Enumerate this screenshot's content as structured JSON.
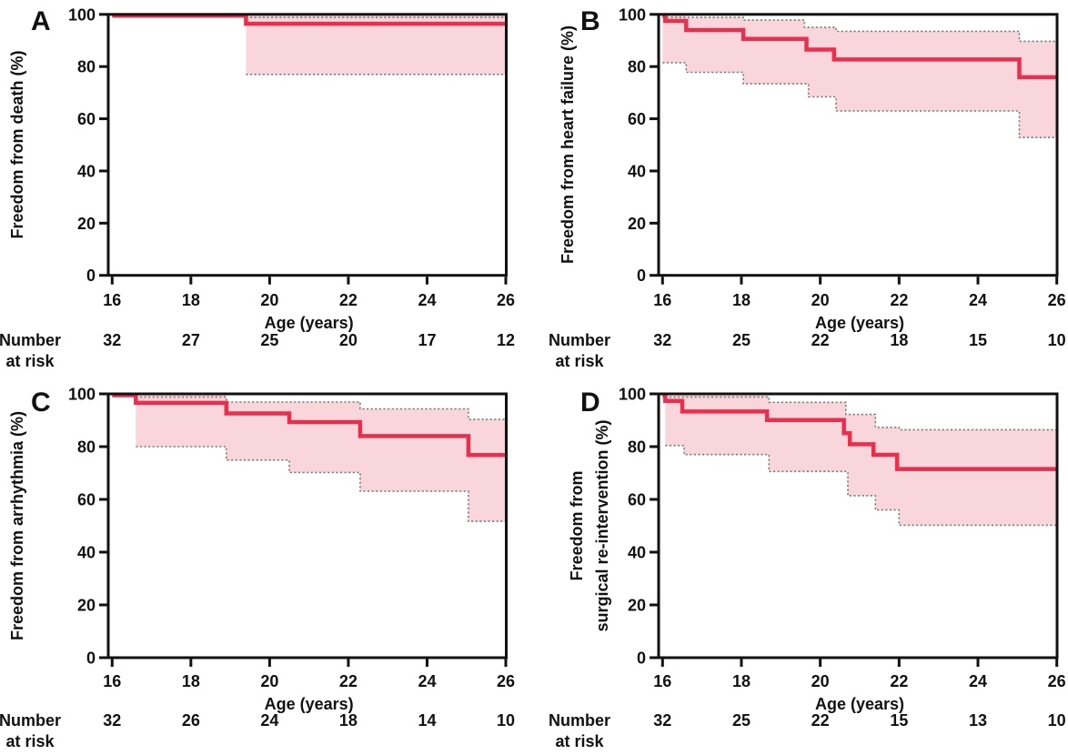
{
  "figure": {
    "xlabel": "Age (years)",
    "risk_label": [
      "Number",
      "at risk"
    ],
    "colors": {
      "curve": "#e8304e",
      "band": "#f9d6db",
      "ci_line": "#7d7d7d",
      "axis": "#111111"
    },
    "chart_data": [
      {
        "type": "km_step",
        "panel": "A",
        "ylabel": [
          "Freedom from death (%)"
        ],
        "xlabel": "Age (years)",
        "xlim": [
          16,
          26
        ],
        "ylim": [
          0,
          100
        ],
        "x_ticks": [
          16,
          18,
          20,
          22,
          24,
          26
        ],
        "y_ticks": [
          0,
          20,
          40,
          60,
          80,
          100
        ],
        "curve_steps": [
          [
            16,
            100
          ],
          [
            19.4,
            96.4
          ]
        ],
        "ci_upper_steps": [
          [
            19.4,
            100
          ]
        ],
        "ci_lower_steps": [
          [
            19.4,
            77
          ]
        ],
        "number_at_risk": [
          32,
          27,
          25,
          20,
          17,
          12
        ]
      },
      {
        "type": "km_step",
        "panel": "B",
        "ylabel": [
          "Freedom from heart failure (%)"
        ],
        "xlabel": "Age (years)",
        "xlim": [
          16,
          26
        ],
        "ylim": [
          0,
          100
        ],
        "x_ticks": [
          16,
          18,
          20,
          22,
          24,
          26
        ],
        "y_ticks": [
          0,
          20,
          40,
          60,
          80,
          100
        ],
        "curve_steps": [
          [
            16,
            100
          ],
          [
            16.07,
            97.5
          ],
          [
            16.6,
            94
          ],
          [
            18.05,
            90.6
          ],
          [
            19.65,
            86.5
          ],
          [
            20.35,
            82.7
          ],
          [
            25.05,
            75.9
          ]
        ],
        "ci_upper_steps": [
          [
            16,
            100
          ],
          [
            16.6,
            98.8
          ],
          [
            18.05,
            97.8
          ],
          [
            19.6,
            95
          ],
          [
            20.4,
            93.5
          ],
          [
            25.05,
            89.7
          ]
        ],
        "ci_lower_steps": [
          [
            16,
            81.5
          ],
          [
            16.6,
            77.8
          ],
          [
            18.05,
            73.4
          ],
          [
            19.7,
            68.4
          ],
          [
            20.4,
            63
          ],
          [
            25.05,
            52.8
          ]
        ],
        "number_at_risk": [
          32,
          25,
          22,
          18,
          15,
          10
        ]
      },
      {
        "type": "km_step",
        "panel": "C",
        "ylabel": [
          "Freedom from arrhythmia (%)"
        ],
        "xlabel": "Age (years)",
        "xlim": [
          16,
          26
        ],
        "ylim": [
          0,
          100
        ],
        "x_ticks": [
          16,
          18,
          20,
          22,
          24,
          26
        ],
        "y_ticks": [
          0,
          20,
          40,
          60,
          80,
          100
        ],
        "curve_steps": [
          [
            16,
            100
          ],
          [
            16.6,
            96.6
          ],
          [
            18.9,
            92.6
          ],
          [
            20.5,
            89.3
          ],
          [
            22.3,
            84
          ],
          [
            25.05,
            76.8
          ]
        ],
        "ci_upper_steps": [
          [
            16.6,
            100
          ],
          [
            18.9,
            96.9
          ],
          [
            22.3,
            94.3
          ],
          [
            25.05,
            90.3
          ]
        ],
        "ci_lower_steps": [
          [
            16.6,
            80
          ],
          [
            18.9,
            74.9
          ],
          [
            20.5,
            70.2
          ],
          [
            22.3,
            63.1
          ],
          [
            25.05,
            51.7
          ]
        ],
        "number_at_risk": [
          32,
          26,
          24,
          18,
          14,
          10
        ]
      },
      {
        "type": "km_step",
        "panel": "D",
        "ylabel": [
          "Freedom from",
          "surgical re-intervention (%)"
        ],
        "xlabel": "Age (years)",
        "xlim": [
          16,
          26
        ],
        "ylim": [
          0,
          100
        ],
        "x_ticks": [
          16,
          18,
          20,
          22,
          24,
          26
        ],
        "y_ticks": [
          0,
          20,
          40,
          60,
          80,
          100
        ],
        "curve_steps": [
          [
            16,
            100
          ],
          [
            16.07,
            97.3
          ],
          [
            16.5,
            93.3
          ],
          [
            18.65,
            90.1
          ],
          [
            20.6,
            85.1
          ],
          [
            20.75,
            80.9
          ],
          [
            21.35,
            76.9
          ],
          [
            21.95,
            71.5
          ]
        ],
        "ci_upper_steps": [
          [
            16.07,
            99.4
          ],
          [
            18.7,
            96.8
          ],
          [
            20.65,
            92.2
          ],
          [
            21.4,
            87.3
          ],
          [
            22,
            86.4
          ]
        ],
        "ci_lower_steps": [
          [
            16.07,
            80.4
          ],
          [
            16.55,
            77
          ],
          [
            18.7,
            70.6
          ],
          [
            20.7,
            61.4
          ],
          [
            21.4,
            56
          ],
          [
            22,
            50.2
          ]
        ],
        "number_at_risk": [
          32,
          25,
          22,
          15,
          13,
          10
        ]
      }
    ]
  }
}
